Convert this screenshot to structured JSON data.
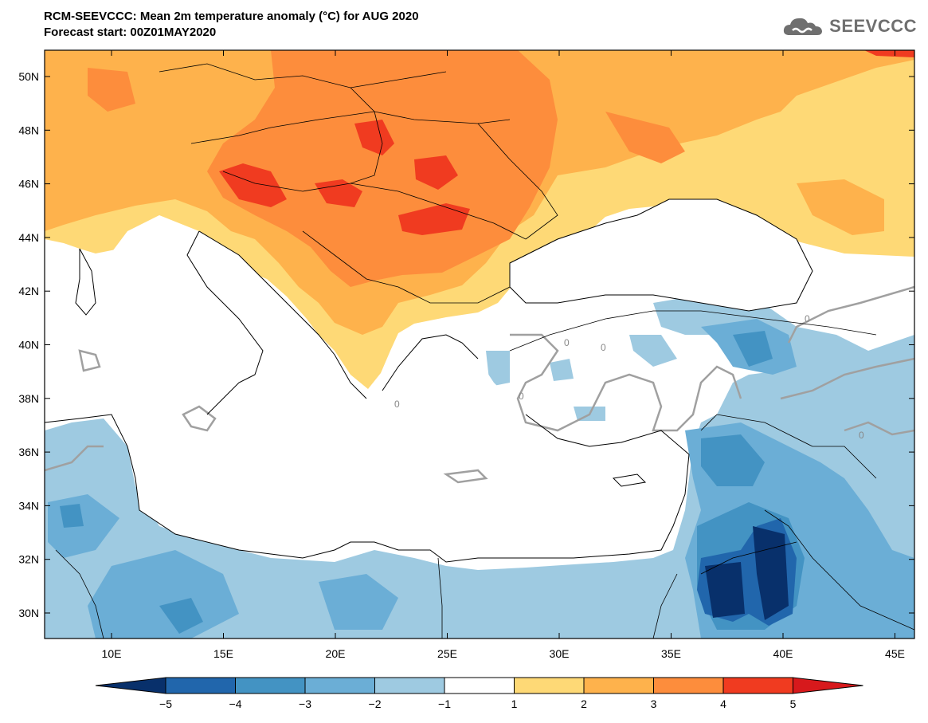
{
  "header": {
    "title_line1": "RCM-SEEVCCC: Mean 2m temperature anomaly (°C) for AUG 2020",
    "title_line2": "Forecast start: 00Z01MAY2020",
    "logo_text": "SEEVCCC",
    "logo_icon": "cloud-logo-icon"
  },
  "map": {
    "lon_ticks": [
      "10E",
      "15E",
      "20E",
      "25E",
      "30E",
      "35E",
      "40E",
      "45E"
    ],
    "lat_ticks": [
      "30N",
      "32N",
      "34N",
      "36N",
      "38N",
      "40N",
      "42N",
      "44N",
      "46N",
      "48N",
      "50N"
    ],
    "contour_labels": [
      "0",
      "0",
      "0",
      "0",
      "0",
      "0"
    ]
  },
  "colorbar": {
    "labels": [
      "−5",
      "−4",
      "−3",
      "−2",
      "−1",
      "1",
      "2",
      "3",
      "4",
      "5"
    ],
    "colors": [
      "#08306b",
      "#2166ac",
      "#4393c3",
      "#6baed6",
      "#9ecae1",
      "#ffffff",
      "#fed976",
      "#feb24c",
      "#fd8d3c",
      "#f03b20",
      "#d7191c"
    ]
  }
}
